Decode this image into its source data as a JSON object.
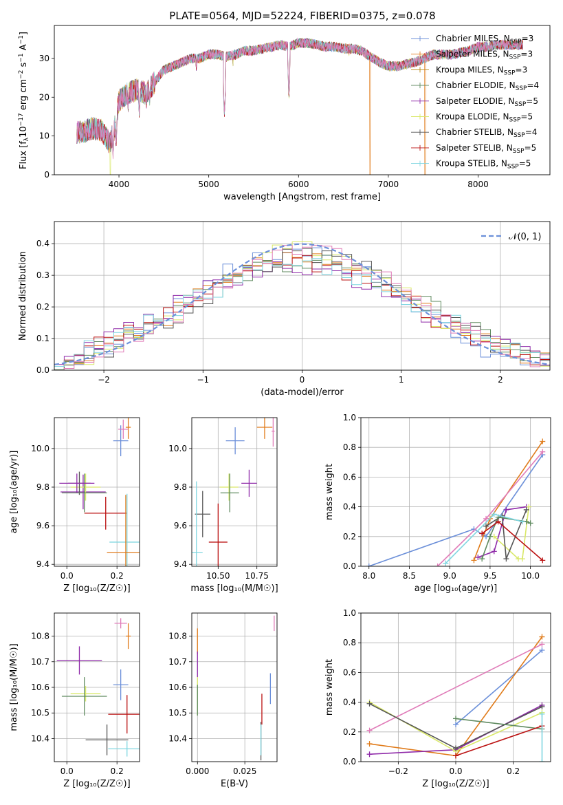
{
  "title": "PLATE=0564, MJD=52224, FIBERID=0375, z=0.078",
  "colors": {
    "Chabrier MILES": "#6b8fd9",
    "Salpeter MILES": "#e07b1a",
    "Kroupa MILES": "#5f8a5f",
    "Chabrier ELODIE": "#8f2aa9",
    "Salpeter ELODIE": "#d9e868",
    "Kroupa ELODIE": "#555555",
    "Chabrier STELIB": "#bb1111",
    "Salpeter STELIB": "#7fd6e0",
    "Kroupa STELIB": "#e07bb8"
  },
  "legend1": [
    {
      "name": "Chabrier MILES, N",
      "sub": "SSP",
      "tail": "=3",
      "color": "#6b8fd9"
    },
    {
      "name": "Salpeter MILES, N",
      "sub": "SSP",
      "tail": "=3",
      "color": "#e07b1a"
    },
    {
      "name": "Kroupa MILES, N",
      "sub": "SSP",
      "tail": "=3",
      "color": "#b8860b"
    },
    {
      "name": "Chabrier ELODIE, N",
      "sub": "SSP",
      "tail": "=4",
      "color": "#5f8a5f"
    },
    {
      "name": "Salpeter ELODIE, N",
      "sub": "SSP",
      "tail": "=5",
      "color": "#8f2aa9"
    },
    {
      "name": "Kroupa ELODIE, N",
      "sub": "SSP",
      "tail": "=5",
      "color": "#d9e868"
    },
    {
      "name": "Chabrier STELIB, N",
      "sub": "SSP",
      "tail": "=4",
      "color": "#555555"
    },
    {
      "name": "Salpeter STELIB, N",
      "sub": "SSP",
      "tail": "=5",
      "color": "#bb1111"
    },
    {
      "name": "Kroupa STELIB, N",
      "sub": "SSP",
      "tail": "=5",
      "color": "#7fd6e0"
    }
  ],
  "legend2": {
    "label": "𝒩(0, 1)",
    "color": "#6b8fd9"
  },
  "chart_data": [
    {
      "id": "spectrum",
      "type": "line",
      "xlabel": "wavelength [Angstrom, rest frame]",
      "ylabel": "Flux [f_λ 10^-17 erg cm^-2 s^-1 A^-1]",
      "xlim": [
        3280,
        8800
      ],
      "ylim": [
        0,
        38.5
      ],
      "xticks": [
        4000,
        5000,
        6000,
        7000,
        8000
      ],
      "yticks": [
        0,
        10,
        20,
        30
      ],
      "continuum": [
        [
          3530,
          11
        ],
        [
          3600,
          11
        ],
        [
          3700,
          12
        ],
        [
          3800,
          11.5
        ],
        [
          3850,
          10
        ],
        [
          3900,
          8
        ],
        [
          3950,
          12
        ],
        [
          4000,
          19
        ],
        [
          4100,
          21
        ],
        [
          4200,
          22
        ],
        [
          4300,
          21
        ],
        [
          4400,
          24
        ],
        [
          4500,
          27
        ],
        [
          4600,
          28
        ],
        [
          4700,
          29
        ],
        [
          4800,
          30
        ],
        [
          4900,
          30
        ],
        [
          5000,
          31
        ],
        [
          5100,
          31
        ],
        [
          5200,
          30.5
        ],
        [
          5300,
          31
        ],
        [
          5400,
          32
        ],
        [
          5500,
          32
        ],
        [
          5600,
          32.5
        ],
        [
          5700,
          33
        ],
        [
          5800,
          33.5
        ],
        [
          5900,
          33
        ],
        [
          6000,
          34
        ],
        [
          6100,
          34
        ],
        [
          6200,
          33.5
        ],
        [
          6300,
          33
        ],
        [
          6400,
          33
        ],
        [
          6500,
          32.5
        ],
        [
          6600,
          32.5
        ],
        [
          6700,
          32
        ],
        [
          6800,
          30.5
        ],
        [
          6900,
          29
        ],
        [
          7000,
          28
        ],
        [
          7100,
          28
        ],
        [
          7200,
          28.5
        ],
        [
          7300,
          29
        ],
        [
          7400,
          30
        ],
        [
          7500,
          31
        ],
        [
          7600,
          31
        ],
        [
          7700,
          31
        ],
        [
          7800,
          31.5
        ],
        [
          7900,
          32
        ],
        [
          8000,
          33
        ],
        [
          8100,
          33
        ],
        [
          8200,
          33.5
        ],
        [
          8300,
          33.5
        ],
        [
          8400,
          33.5
        ],
        [
          8500,
          33.5
        ]
      ],
      "absorption": [
        [
          3934,
          4
        ],
        [
          3968,
          6
        ],
        [
          4102,
          16
        ],
        [
          4227,
          14
        ],
        [
          4306,
          17
        ],
        [
          4341,
          17
        ],
        [
          4861,
          26
        ],
        [
          5175,
          14
        ],
        [
          5270,
          28
        ],
        [
          5893,
          19
        ],
        [
          6563,
          30
        ]
      ],
      "model_dips": [
        {
          "x": 3905,
          "series": "Salpeter ELODIE"
        },
        {
          "x": 6795,
          "series": "Salpeter MILES"
        },
        {
          "x": 7410,
          "series": "Salpeter MILES"
        }
      ]
    },
    {
      "id": "residuals",
      "type": "histogram",
      "xlabel": "(data-model)/error",
      "ylabel": "Normed distribution",
      "xlim": [
        -2.5,
        2.5
      ],
      "ylim": [
        0,
        0.47
      ],
      "xticks": [
        -2,
        -1,
        0,
        1,
        2
      ],
      "yticks": [
        0.0,
        0.1,
        0.2,
        0.3,
        0.4
      ],
      "bin_width": 0.1,
      "bins": 50
    },
    {
      "id": "z_age",
      "type": "scatter_errorbar",
      "xlabel": "Z [log₁₀(Z/Z☉)]",
      "ylabel": "age  [log₁₀(age/yr)]",
      "xlim": [
        -0.05,
        0.29
      ],
      "ylim": [
        9.39,
        10.16
      ],
      "xticks": [
        0.0,
        0.2
      ],
      "yticks": [
        9.4,
        9.6,
        9.8,
        10.0
      ],
      "points": [
        {
          "series": "Chabrier MILES",
          "x": 0.215,
          "y": 10.04,
          "xerr": 0.03,
          "yerr": 0.08
        },
        {
          "series": "Salpeter MILES",
          "x": 0.245,
          "y": 10.11,
          "xerr": 0.01,
          "yerr": 0.06
        },
        {
          "series": "Kroupa STELIB",
          "x": 0.225,
          "y": 10.1,
          "xerr": 0.02,
          "yerr": 0.05
        },
        {
          "series": "Chabrier ELODIE",
          "x": 0.065,
          "y": 9.775,
          "xerr": 0.09,
          "yerr": 0.09
        },
        {
          "series": "Salpeter ELODIE",
          "x": 0.075,
          "y": 9.8,
          "xerr": 0.06,
          "yerr": 0.07
        },
        {
          "series": "Kroupa ELODIE",
          "x": 0.05,
          "y": 9.82,
          "xerr": 0.045,
          "yerr": 0.06
        },
        {
          "series": "Kroupa MILES",
          "x": 0.07,
          "y": 9.77,
          "xerr": 0.09,
          "yerr": 0.1
        },
        {
          "series": "Chabrier STELIB",
          "x": 0.155,
          "y": 9.665,
          "xerr": 0.085,
          "yerr": 0.085
        },
        {
          "series": "Salpeter STELIB",
          "x": 0.24,
          "y": 9.515,
          "xerr": 0.07,
          "yerr": 0.25
        },
        {
          "series": "Salpeter MILES",
          "x": 0.235,
          "y": 9.46,
          "xerr": 0.075,
          "yerr": 0.3
        },
        {
          "series": "Chabrier ELODIE",
          "x": 0.04,
          "y": 9.82,
          "xerr": 0.07,
          "yerr": 0.05
        }
      ]
    },
    {
      "id": "mass_age",
      "type": "scatter_errorbar",
      "xlabel": "mass [log₁₀(M/M☉)]",
      "ylabel": "",
      "xlim": [
        10.33,
        10.88
      ],
      "ylim": [
        9.39,
        10.16
      ],
      "xticks": [
        10.5,
        10.75
      ],
      "yticks": [
        9.4,
        9.6,
        9.8,
        10.0
      ],
      "points": [
        {
          "series": "Chabrier MILES",
          "x": 10.61,
          "y": 10.04,
          "xerr": 0.06,
          "yerr": 0.07
        },
        {
          "series": "Salpeter MILES",
          "x": 10.8,
          "y": 10.11,
          "xerr": 0.05,
          "yerr": 0.06
        },
        {
          "series": "Kroupa STELIB",
          "x": 10.855,
          "y": 10.09,
          "xerr": 0.01,
          "yerr": 0.08
        },
        {
          "series": "Chabrier ELODIE",
          "x": 10.7,
          "y": 9.82,
          "xerr": 0.05,
          "yerr": 0.07
        },
        {
          "series": "Salpeter ELODIE",
          "x": 10.57,
          "y": 9.8,
          "xerr": 0.06,
          "yerr": 0.07
        },
        {
          "series": "Kroupa ELODIE",
          "x": 10.4,
          "y": 9.66,
          "xerr": 0.05,
          "yerr": 0.12
        },
        {
          "series": "Kroupa MILES",
          "x": 10.575,
          "y": 9.77,
          "xerr": 0.06,
          "yerr": 0.1
        },
        {
          "series": "Chabrier STELIB",
          "x": 10.5,
          "y": 9.515,
          "xerr": 0.06,
          "yerr": 0.2
        },
        {
          "series": "Salpeter STELIB",
          "x": 10.36,
          "y": 9.46,
          "xerr": 0.04,
          "yerr": 0.37
        }
      ]
    },
    {
      "id": "age_weight",
      "type": "line",
      "xlabel": "age  [log₁₀(age/yr)]",
      "ylabel": "mass weight",
      "xlim": [
        7.9,
        10.25
      ],
      "ylim": [
        0,
        1.0
      ],
      "xticks": [
        8.0,
        8.5,
        9.0,
        9.5,
        10.0
      ],
      "yticks": [
        0.0,
        0.2,
        0.4,
        0.6,
        0.8,
        1.0
      ],
      "series": [
        {
          "series": "Chabrier MILES",
          "x": [
            8.0,
            9.3,
            9.45,
            10.15
          ],
          "y": [
            0.0,
            0.25,
            0.2,
            0.75
          ]
        },
        {
          "series": "Salpeter MILES",
          "x": [
            9.3,
            9.5,
            10.15
          ],
          "y": [
            0.04,
            0.32,
            0.84
          ]
        },
        {
          "series": "Kroupa STELIB",
          "x": [
            8.85,
            9.45,
            10.15
          ],
          "y": [
            0.0,
            0.32,
            0.77
          ]
        },
        {
          "series": "Chabrier ELODIE",
          "x": [
            9.35,
            9.55,
            9.7,
            9.95
          ],
          "y": [
            0.06,
            0.1,
            0.38,
            0.4
          ]
        },
        {
          "series": "Salpeter ELODIE",
          "x": [
            9.55,
            9.85,
            9.9,
            9.98
          ],
          "y": [
            0.2,
            0.05,
            0.05,
            0.4
          ]
        },
        {
          "series": "Kroupa ELODIE",
          "x": [
            9.45,
            9.65,
            9.7,
            9.95
          ],
          "y": [
            0.27,
            0.34,
            0.05,
            0.38
          ]
        },
        {
          "series": "Kroupa MILES",
          "x": [
            9.4,
            9.5,
            9.6,
            9.95,
            10.0
          ],
          "y": [
            0.05,
            0.2,
            0.33,
            0.3,
            0.29
          ]
        },
        {
          "series": "Chabrier STELIB",
          "x": [
            9.4,
            9.6,
            10.15
          ],
          "y": [
            0.22,
            0.3,
            0.04
          ]
        },
        {
          "series": "Salpeter STELIB",
          "x": [
            8.95,
            9.55,
            9.9
          ],
          "y": [
            0.02,
            0.35,
            0.3
          ]
        }
      ]
    },
    {
      "id": "z_mass",
      "type": "scatter_errorbar",
      "xlabel": "Z [log₁₀(Z/Z☉)]",
      "ylabel": "mass [log₁₀(M/M☉)]",
      "xlim": [
        -0.05,
        0.29
      ],
      "ylim": [
        10.31,
        10.89
      ],
      "xticks": [
        0.0,
        0.2
      ],
      "yticks": [
        10.4,
        10.5,
        10.6,
        10.7,
        10.8
      ],
      "points": [
        {
          "series": "Kroupa STELIB",
          "x": 0.215,
          "y": 10.85,
          "xerr": 0.025,
          "yerr": 0.02
        },
        {
          "series": "Salpeter MILES",
          "x": 0.245,
          "y": 10.8,
          "xerr": 0.01,
          "yerr": 0.05
        },
        {
          "series": "Chabrier ELODIE",
          "x": 0.05,
          "y": 10.705,
          "xerr": 0.09,
          "yerr": 0.055
        },
        {
          "series": "Chabrier MILES",
          "x": 0.215,
          "y": 10.61,
          "xerr": 0.03,
          "yerr": 0.06
        },
        {
          "series": "Salpeter ELODIE",
          "x": 0.075,
          "y": 10.575,
          "xerr": 0.06,
          "yerr": 0.03
        },
        {
          "series": "Kroupa MILES",
          "x": 0.07,
          "y": 10.565,
          "xerr": 0.09,
          "yerr": 0.075
        },
        {
          "series": "Chabrier STELIB",
          "x": 0.24,
          "y": 10.495,
          "xerr": 0.075,
          "yerr": 0.075
        },
        {
          "series": "Kroupa ELODIE",
          "x": 0.16,
          "y": 10.395,
          "xerr": 0.085,
          "yerr": 0.06
        },
        {
          "series": "Salpeter STELIB",
          "x": 0.24,
          "y": 10.36,
          "xerr": 0.075,
          "yerr": 0.03
        }
      ]
    },
    {
      "id": "ebv_mass",
      "type": "scatter_errorbar",
      "xlabel": "E(B-V)",
      "ylabel": "",
      "xlim": [
        -0.003,
        0.042
      ],
      "ylim": [
        10.31,
        10.89
      ],
      "xticks": [
        0.0,
        0.025
      ],
      "yticks": [
        10.4,
        10.5,
        10.6,
        10.7,
        10.8
      ],
      "points": [
        {
          "series": "Kroupa STELIB",
          "x": 0.0405,
          "y": 10.85,
          "xerr": 0,
          "yerr": 0.03
        },
        {
          "series": "Salpeter MILES",
          "x": 0.0,
          "y": 10.78,
          "xerr": 0,
          "yerr": 0.05
        },
        {
          "series": "Chabrier ELODIE",
          "x": 0.0,
          "y": 10.69,
          "xerr": 0,
          "yerr": 0.05
        },
        {
          "series": "Chabrier MILES",
          "x": 0.0385,
          "y": 10.595,
          "xerr": 0,
          "yerr": 0.06
        },
        {
          "series": "Salpeter ELODIE",
          "x": 0.0,
          "y": 10.565,
          "xerr": 0,
          "yerr": 0.075
        },
        {
          "series": "Kroupa MILES",
          "x": 0.0,
          "y": 10.55,
          "xerr": 0,
          "yerr": 0.06
        },
        {
          "series": "Chabrier STELIB",
          "x": 0.034,
          "y": 10.515,
          "xerr": 0,
          "yerr": 0.06
        },
        {
          "series": "Kroupa ELODIE",
          "x": 0.0335,
          "y": 10.39,
          "xerr": 0,
          "yerr": 0.075
        },
        {
          "series": "Salpeter STELIB",
          "x": 0.0335,
          "y": 10.395,
          "xerr": 0,
          "yerr": 0.06
        }
      ]
    },
    {
      "id": "z_weight",
      "type": "line",
      "xlabel": "Z [log₁₀(Z/Z☉)]",
      "ylabel": "mass weight",
      "xlim": [
        -0.33,
        0.33
      ],
      "ylim": [
        0,
        1.0
      ],
      "xticks": [
        -0.2,
        0.0,
        0.2
      ],
      "yticks": [
        0.0,
        0.2,
        0.4,
        0.6,
        0.8,
        1.0
      ],
      "series": [
        {
          "series": "Chabrier MILES",
          "x": [
            0.0,
            0.3
          ],
          "y": [
            0.25,
            0.75
          ]
        },
        {
          "series": "Salpeter MILES",
          "x": [
            -0.3,
            0.0,
            0.3
          ],
          "y": [
            0.12,
            0.04,
            0.84
          ]
        },
        {
          "series": "Kroupa STELIB",
          "x": [
            -0.3,
            0.3
          ],
          "y": [
            0.21,
            0.79
          ]
        },
        {
          "series": "Chabrier ELODIE",
          "x": [
            -0.3,
            0.0,
            0.3
          ],
          "y": [
            0.05,
            0.08,
            0.38
          ]
        },
        {
          "series": "Salpeter ELODIE",
          "x": [
            -0.3,
            0.0,
            0.3
          ],
          "y": [
            0.4,
            0.07,
            0.33
          ]
        },
        {
          "series": "Kroupa ELODIE",
          "x": [
            -0.3,
            0.0,
            0.3
          ],
          "y": [
            0.39,
            0.09,
            0.37
          ]
        },
        {
          "series": "Kroupa MILES",
          "x": [
            0.0,
            0.3
          ],
          "y": [
            0.29,
            0.22
          ]
        },
        {
          "series": "Chabrier STELIB",
          "x": [
            0.0,
            0.3
          ],
          "y": [
            0.04,
            0.24
          ]
        },
        {
          "series": "Salpeter STELIB",
          "x": [
            0.3,
            0.3
          ],
          "y": [
            0.0,
            0.32
          ]
        }
      ]
    }
  ]
}
